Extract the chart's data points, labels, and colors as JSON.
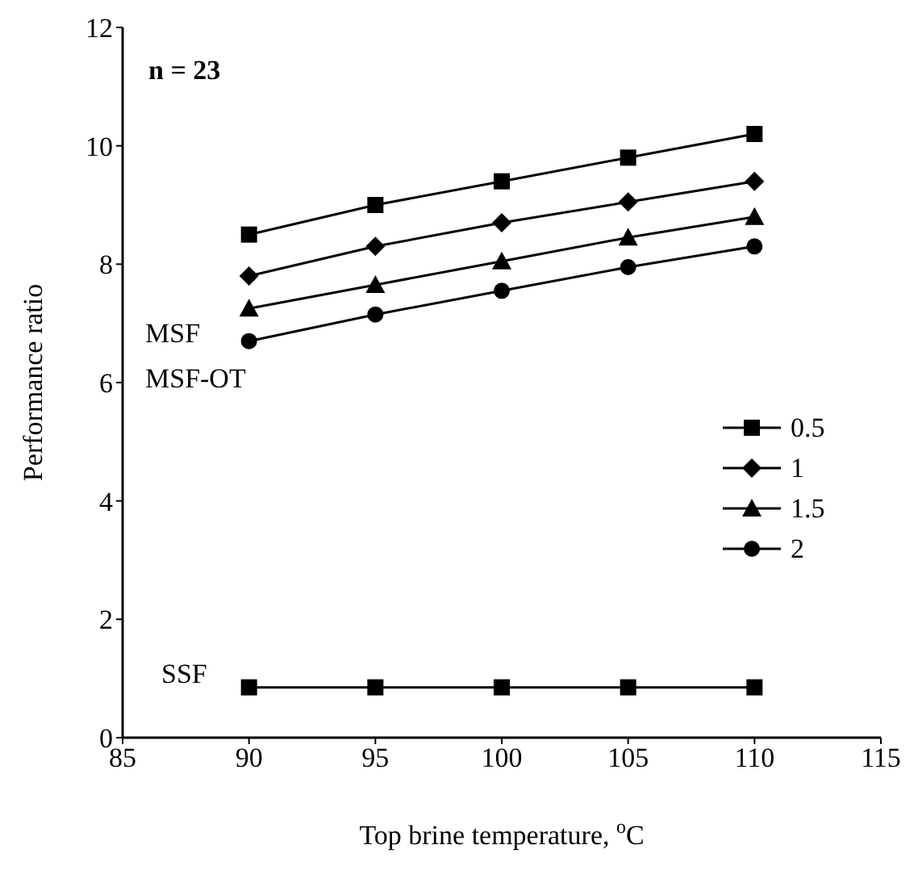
{
  "chart_data": {
    "type": "line",
    "xlabel": "Top brine temperature, $^{o}$C",
    "ylabel": "Performance ratio",
    "x": [
      90,
      95,
      100,
      105,
      110
    ],
    "series": [
      {
        "name": "0.5",
        "color": "#000000",
        "marker": "square",
        "values": [
          8.5,
          9.0,
          9.4,
          9.8,
          10.2
        ]
      },
      {
        "name": "1",
        "color": "#000000",
        "marker": "diamond",
        "values": [
          7.8,
          8.3,
          8.7,
          9.05,
          9.4
        ]
      },
      {
        "name": "1.5",
        "color": "#000000",
        "marker": "triangle",
        "values": [
          7.25,
          7.65,
          8.05,
          8.45,
          8.8
        ]
      },
      {
        "name": "2",
        "color": "#000000",
        "marker": "circle",
        "values": [
          6.7,
          7.15,
          7.55,
          7.95,
          8.3
        ]
      },
      {
        "color": "#000000",
        "marker": "square",
        "values": [
          0.85,
          0.85,
          0.85,
          0.85,
          0.85
        ]
      }
    ],
    "xlim": [
      85,
      115
    ],
    "xticks": [
      85,
      90,
      95,
      100,
      105,
      110,
      115
    ],
    "ylim": [
      0,
      12
    ],
    "yticks": [
      0,
      2,
      4,
      6,
      8,
      10,
      12
    ],
    "grid": false,
    "legend": "right",
    "line_style": "solid",
    "annotations": [
      "n = 23",
      "MSF",
      "MSF-OT",
      "SSF"
    ]
  }
}
